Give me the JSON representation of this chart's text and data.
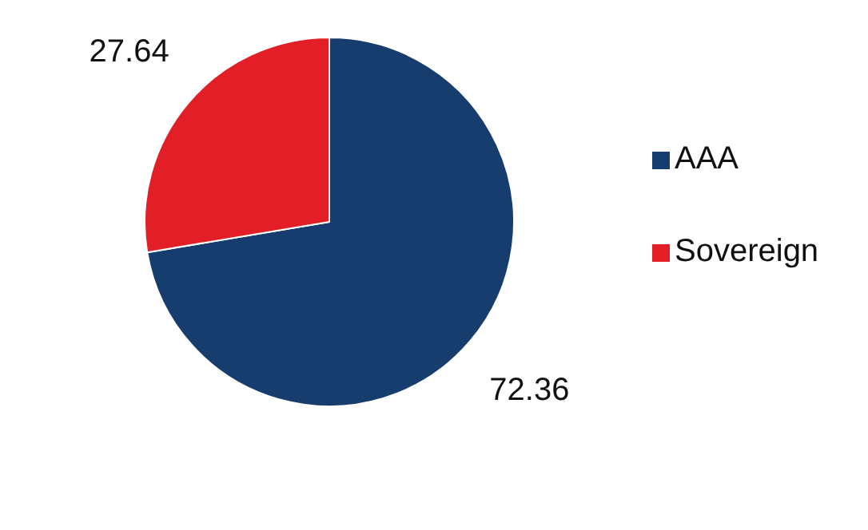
{
  "chart_data": {
    "type": "pie",
    "categories": [
      "AAA",
      "Sovereign"
    ],
    "values": [
      72.36,
      27.64
    ],
    "colors": [
      "#173c6e",
      "#e21f26"
    ],
    "data_labels": true,
    "legend": "right"
  }
}
